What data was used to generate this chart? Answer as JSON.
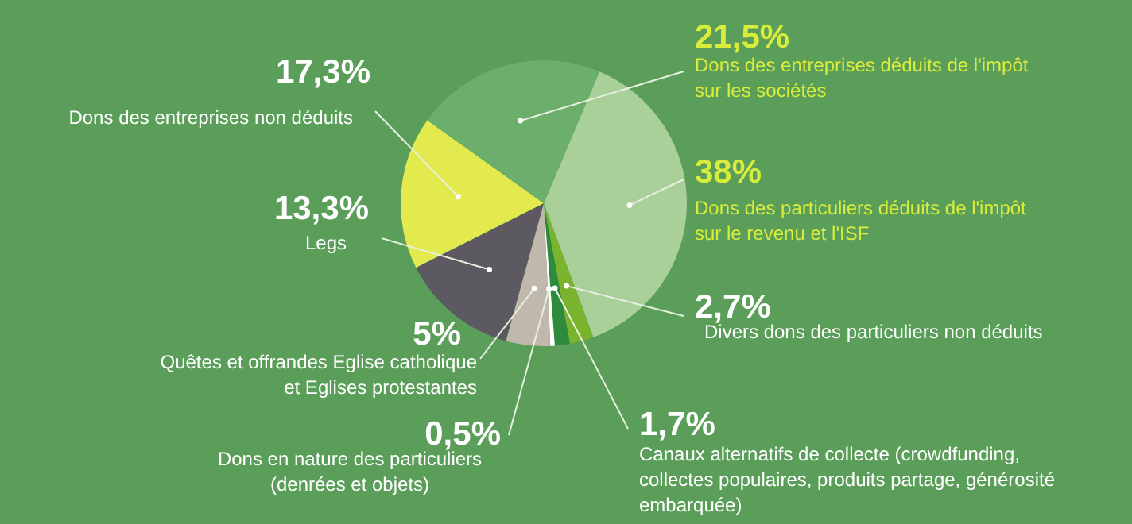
{
  "chart_data": {
    "type": "pie",
    "categories": [
      "Dons des particuliers déduits de l'impôt\nsur le revenu et l'ISF",
      "Divers dons des particuliers non déduits",
      "Canaux alternatifs de collecte (crowdfunding,\ncollectes populaires, produits partage, générosité\nembarquée)",
      "Dons en nature des particuliers\n(denrées et objets)",
      "Quêtes et offrandes Eglise catholique\net Eglises protestantes",
      "Legs",
      "Dons des entreprises non déduits",
      "Dons des entreprises déduits de l'impôt\nsur les sociétés"
    ],
    "values": [
      38,
      2.7,
      1.7,
      0.5,
      5,
      13.3,
      17.3,
      21.5
    ],
    "value_labels": [
      "38%",
      "2,7%",
      "1,7%",
      "0,5%",
      "5%",
      "13,3%",
      "17,3%",
      "21,5%"
    ],
    "colors": [
      "#a8d098",
      "#7ab32e",
      "#2e8b3e",
      "#ffffff",
      "#c0b8ad",
      "#5c5a60",
      "#e2ea4e",
      "#6cae6c"
    ]
  }
}
